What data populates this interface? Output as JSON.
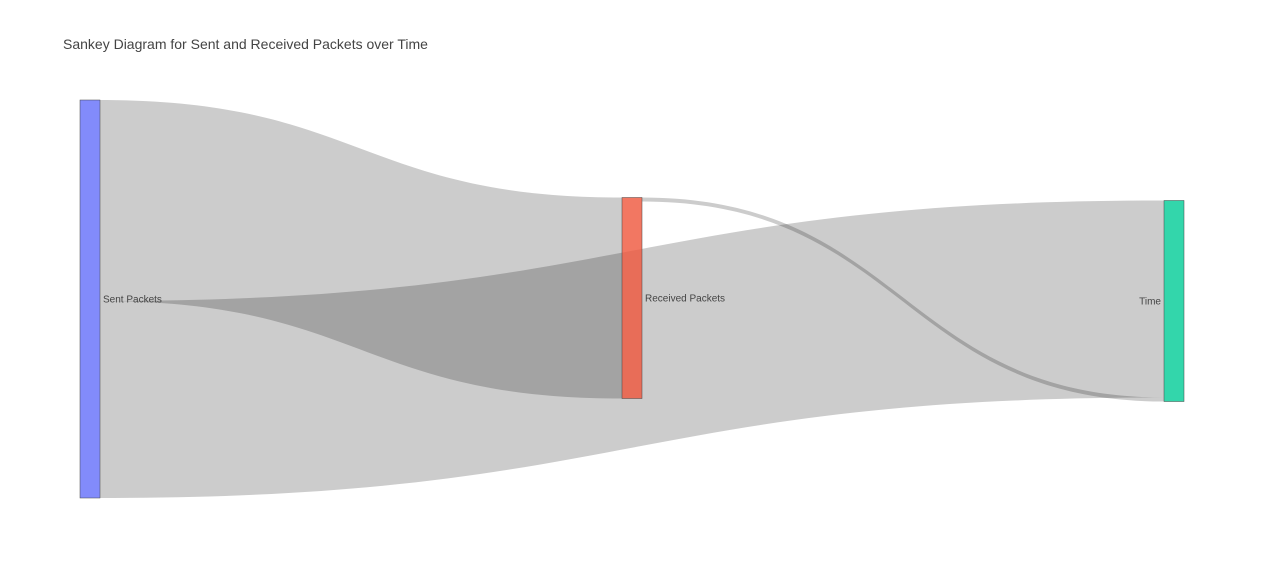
{
  "chart_data": {
    "type": "sankey",
    "title": "Sankey Diagram for Sent and Received Packets over Time",
    "nodes": [
      {
        "label": "Sent Packets",
        "color": "#636efa"
      },
      {
        "label": "Received Packets",
        "color": "#ef553b"
      },
      {
        "label": "Time",
        "color": "#00cc96"
      }
    ],
    "links": [
      {
        "source": 0,
        "target": 1,
        "value": 100
      },
      {
        "source": 0,
        "target": 2,
        "value": 98
      },
      {
        "source": 1,
        "target": 2,
        "value": 2
      }
    ],
    "link_color": "#000000",
    "link_opacity": 0.2
  }
}
